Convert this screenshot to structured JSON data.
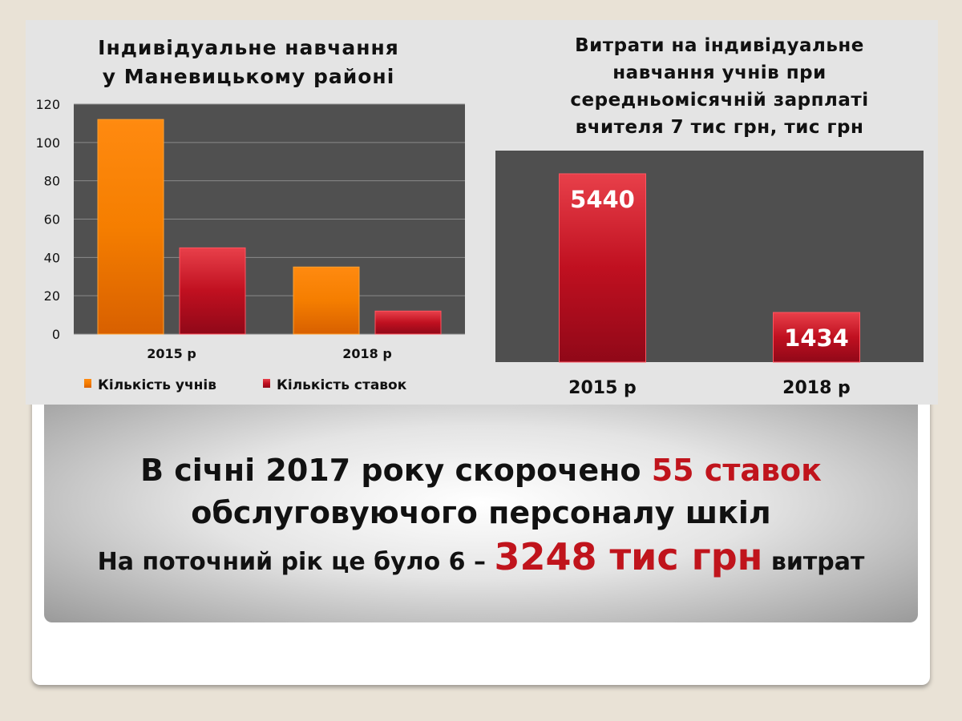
{
  "chart_data": [
    {
      "type": "bar",
      "title": "Індивідуальне навчання у Маневицькому районі",
      "categories": [
        "2015 р",
        "2018 р"
      ],
      "series": [
        {
          "name": "Кількість учнів",
          "values": [
            112,
            35
          ],
          "color": "#ff8000"
        },
        {
          "name": "Кількість ставок",
          "values": [
            45,
            12
          ],
          "color": "#c0141c"
        }
      ],
      "ylim": [
        0,
        120
      ],
      "yticks": [
        "0",
        "20",
        "40",
        "60",
        "80",
        "100",
        "120"
      ],
      "grid": true,
      "legend": "bottom"
    },
    {
      "type": "bar",
      "title": "Витрати на індивідуальне навчання учнів при середньомісячній зарплаті вчителя 7 тис грн, тис грн",
      "categories": [
        "2015 р",
        "2018 р"
      ],
      "values": [
        5440,
        1434
      ],
      "data_labels": [
        "5440",
        "1434"
      ],
      "color": "#c0141c",
      "grid": false
    }
  ],
  "titles": {
    "left_l1": "Індивідуальне навчання",
    "left_l2": "у Маневицькому районі",
    "right_l1": "Витрати на індивідуальне",
    "right_l2": "навчання учнів при",
    "right_l3": "середньомісячній зарплаті",
    "right_l4": "вчителя 7 тис грн, тис грн"
  },
  "banner": {
    "l1a": "В січні 2017 року скорочено ",
    "l1b": "55 ставок",
    "l2": "обслуговуючого персоналу шкіл",
    "l3a": "На поточний рік це було 6 – ",
    "l3b": "3248 тис грн",
    "l3c": " витрат"
  }
}
